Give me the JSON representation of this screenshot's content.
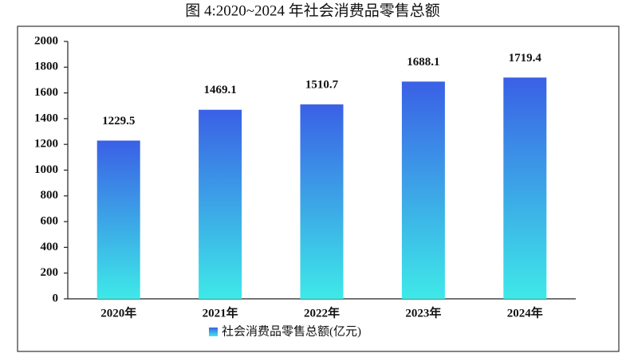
{
  "chart_data": {
    "type": "bar",
    "title": "图 4:2020~2024 年社会消费品零售总额",
    "categories": [
      "2020年",
      "2021年",
      "2022年",
      "2023年",
      "2024年"
    ],
    "series": [
      {
        "name": "社会消费品零售总额(亿元)",
        "color": [
          "#3a60e6",
          "#3ee9e8"
        ],
        "values": [
          1229.5,
          1469.1,
          1510.7,
          1688.1,
          1719.4
        ]
      }
    ],
    "ylim": [
      0,
      2000
    ],
    "yticks": [
      0,
      200,
      400,
      600,
      800,
      1000,
      1200,
      1400,
      1600,
      1800,
      2000
    ],
    "grid": false,
    "legend": "bottom"
  }
}
